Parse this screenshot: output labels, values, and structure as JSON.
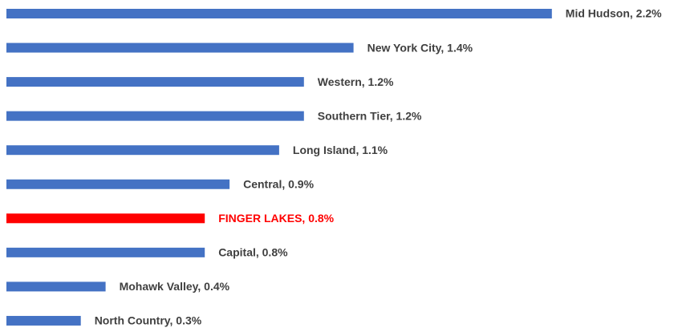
{
  "chart_data": {
    "type": "bar",
    "orientation": "horizontal",
    "values": [
      2.2,
      1.4,
      1.2,
      1.2,
      1.1,
      0.9,
      0.8,
      0.8,
      0.4,
      0.3
    ],
    "value_labels": [
      "Mid Hudson, 2.2%",
      "New York City, 1.4%",
      "Western, 1.2%",
      "Southern Tier, 1.2%",
      "Long Island, 1.1%",
      "Central, 0.9%",
      "FINGER LAKES, 0.8%",
      "Capital, 0.8%",
      "Mohawk Valley, 0.4%",
      "North Country, 0.3%"
    ],
    "colors": [
      "#4472c4",
      "#4472c4",
      "#4472c4",
      "#4472c4",
      "#4472c4",
      "#4472c4",
      "#ff0000",
      "#4472c4",
      "#4472c4",
      "#4472c4"
    ],
    "label_colors": [
      "#404040",
      "#404040",
      "#404040",
      "#404040",
      "#404040",
      "#404040",
      "#ff0000",
      "#404040",
      "#404040",
      "#404040"
    ]
  }
}
